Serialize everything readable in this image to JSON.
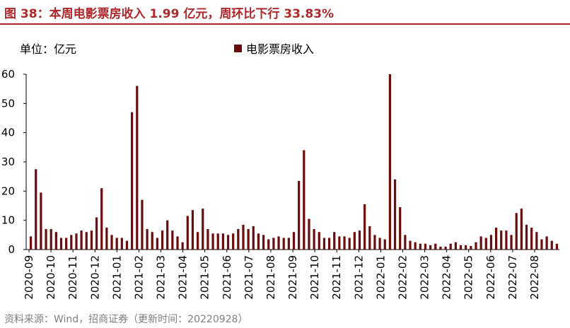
{
  "header": {
    "title": "图 38：本周电影票房收入 1.99 亿元，周环比下行 33.83%"
  },
  "unit_label": "单位：亿元",
  "source": "资料来源：Wind，招商证券（更新时间：20220928）",
  "colors": {
    "accent": "#b0272b",
    "bar": "#6b0d0d"
  },
  "chart_data": {
    "type": "bar",
    "title": "",
    "xlabel": "",
    "ylabel": "",
    "ylim": [
      0,
      60
    ],
    "yticks": [
      0,
      10,
      20,
      30,
      40,
      50,
      60
    ],
    "ytick_labels": [
      "0",
      "10",
      "20",
      "30",
      "40",
      "50",
      "60"
    ],
    "grid": false,
    "legend": "top-center",
    "x_ticks": [
      "2020-09",
      "2020-10",
      "2020-11",
      "2020-12",
      "2021-01",
      "2021-02",
      "2021-03",
      "2021-04",
      "2021-05",
      "2021-06",
      "2021-07",
      "2021-08",
      "2021-09",
      "2021-10",
      "2021-11",
      "2021-12",
      "2022-01",
      "2022-02",
      "2022-03",
      "2022-04",
      "2022-05",
      "2022-06",
      "2022-07",
      "2022-08"
    ],
    "series": [
      {
        "name": "电影票房收入",
        "values": [
          4.5,
          27.5,
          19.5,
          7,
          7,
          6,
          4,
          4,
          5,
          5.5,
          6.5,
          6,
          6.5,
          11,
          21,
          7.5,
          5,
          4,
          4,
          3,
          47,
          56,
          17,
          7,
          6,
          4,
          6.5,
          10,
          6.5,
          4.5,
          2.5,
          11.5,
          13.5,
          6,
          14,
          7,
          5.5,
          5.5,
          5.5,
          5,
          5.5,
          7,
          8.5,
          7,
          8,
          5.5,
          5,
          3.5,
          4,
          4.5,
          4,
          4,
          6,
          23.5,
          34,
          10.5,
          7,
          6,
          4,
          4,
          6,
          4.5,
          4.5,
          4,
          6,
          6.5,
          15.5,
          8,
          5,
          4,
          3.5,
          60,
          24,
          14.5,
          5,
          3,
          2.5,
          2,
          2,
          1.5,
          2,
          1,
          1,
          2,
          2.5,
          1.5,
          1.5,
          1.2,
          2.5,
          4.5,
          4,
          5,
          7.5,
          6.5,
          6.5,
          5,
          12.5,
          14,
          8.5,
          7.5,
          6,
          3.5,
          4.5,
          3,
          1.99
        ]
      }
    ]
  }
}
